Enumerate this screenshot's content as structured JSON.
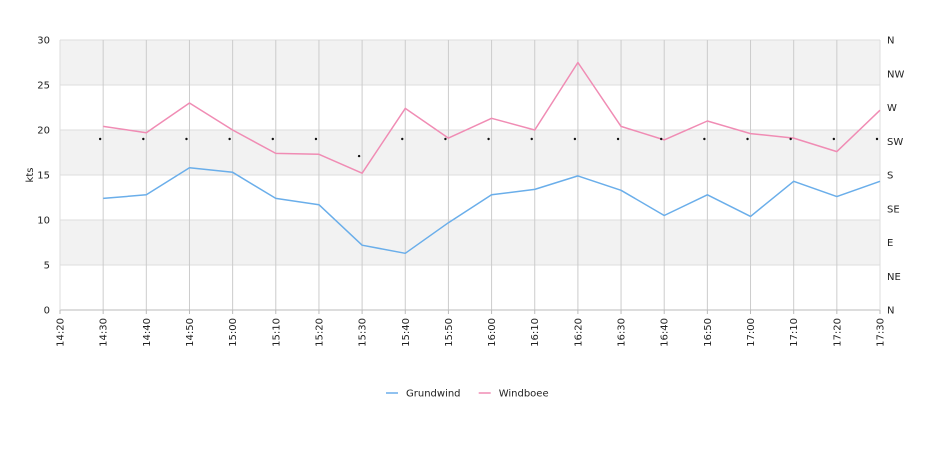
{
  "chart_data": {
    "type": "line",
    "xlabel": "",
    "ylabel": "kts",
    "x": [
      "14:20",
      "14:30",
      "14:40",
      "14:50",
      "15:00",
      "15:10",
      "15:20",
      "15:30",
      "15:40",
      "15:50",
      "16:00",
      "16:10",
      "16:20",
      "16:30",
      "16:40",
      "16:50",
      "17:00",
      "17:10",
      "17:20",
      "17:30"
    ],
    "ylim": [
      0,
      30
    ],
    "yticks": [
      "0",
      "5",
      "10",
      "15",
      "20",
      "25",
      "30"
    ],
    "direction_ticks": [
      "N",
      "NE",
      "E",
      "SE",
      "S",
      "SW",
      "W",
      "NW",
      "N"
    ],
    "series": [
      {
        "name": "Grundwind",
        "color": "#6aaeea",
        "points": [
          {
            "x": "14:30",
            "y": 12.4
          },
          {
            "x": "14:40",
            "y": 12.8
          },
          {
            "x": "14:50",
            "y": 15.8
          },
          {
            "x": "15:00",
            "y": 15.3
          },
          {
            "x": "15:10",
            "y": 12.4
          },
          {
            "x": "15:20",
            "y": 11.7
          },
          {
            "x": "15:30",
            "y": 7.2
          },
          {
            "x": "15:40",
            "y": 6.3
          },
          {
            "x": "15:50",
            "y": 9.7
          },
          {
            "x": "16:00",
            "y": 12.8
          },
          {
            "x": "16:10",
            "y": 13.4
          },
          {
            "x": "16:20",
            "y": 14.9
          },
          {
            "x": "16:30",
            "y": 13.3
          },
          {
            "x": "16:40",
            "y": 10.5
          },
          {
            "x": "16:50",
            "y": 12.8
          },
          {
            "x": "17:00",
            "y": 10.4
          },
          {
            "x": "17:10",
            "y": 14.3
          },
          {
            "x": "17:20",
            "y": 12.6
          },
          {
            "x": "17:30",
            "y": 14.3
          }
        ]
      },
      {
        "name": "Windboee",
        "color": "#f08cb4",
        "points": [
          {
            "x": "14:30",
            "y": 20.4
          },
          {
            "x": "14:40",
            "y": 19.7
          },
          {
            "x": "14:50",
            "y": 23.0
          },
          {
            "x": "15:00",
            "y": 20.0
          },
          {
            "x": "15:10",
            "y": 17.4
          },
          {
            "x": "15:20",
            "y": 17.3
          },
          {
            "x": "15:30",
            "y": 15.2
          },
          {
            "x": "15:40",
            "y": 22.4
          },
          {
            "x": "15:50",
            "y": 19.1
          },
          {
            "x": "16:00",
            "y": 21.3
          },
          {
            "x": "16:10",
            "y": 20.0
          },
          {
            "x": "16:20",
            "y": 27.5
          },
          {
            "x": "16:30",
            "y": 20.4
          },
          {
            "x": "16:40",
            "y": 18.9
          },
          {
            "x": "16:50",
            "y": 21.0
          },
          {
            "x": "17:00",
            "y": 19.6
          },
          {
            "x": "17:10",
            "y": 19.1
          },
          {
            "x": "17:20",
            "y": 17.6
          },
          {
            "x": "17:30",
            "y": 22.2
          }
        ]
      }
    ],
    "direction_dots": [
      {
        "x": "14:30",
        "y": 19.0
      },
      {
        "x": "14:40",
        "y": 19.0
      },
      {
        "x": "14:50",
        "y": 19.0
      },
      {
        "x": "15:00",
        "y": 19.0
      },
      {
        "x": "15:10",
        "y": 19.0
      },
      {
        "x": "15:20",
        "y": 19.0
      },
      {
        "x": "15:30",
        "y": 17.1
      },
      {
        "x": "15:40",
        "y": 19.0
      },
      {
        "x": "15:50",
        "y": 19.0
      },
      {
        "x": "16:00",
        "y": 19.0
      },
      {
        "x": "16:10",
        "y": 19.0
      },
      {
        "x": "16:20",
        "y": 19.0
      },
      {
        "x": "16:30",
        "y": 19.0
      },
      {
        "x": "16:40",
        "y": 19.0
      },
      {
        "x": "16:50",
        "y": 19.0
      },
      {
        "x": "17:00",
        "y": 19.0
      },
      {
        "x": "17:10",
        "y": 19.0
      },
      {
        "x": "17:20",
        "y": 19.0
      },
      {
        "x": "17:30",
        "y": 19.0
      }
    ],
    "grid": true,
    "legend_position": "bottom"
  }
}
